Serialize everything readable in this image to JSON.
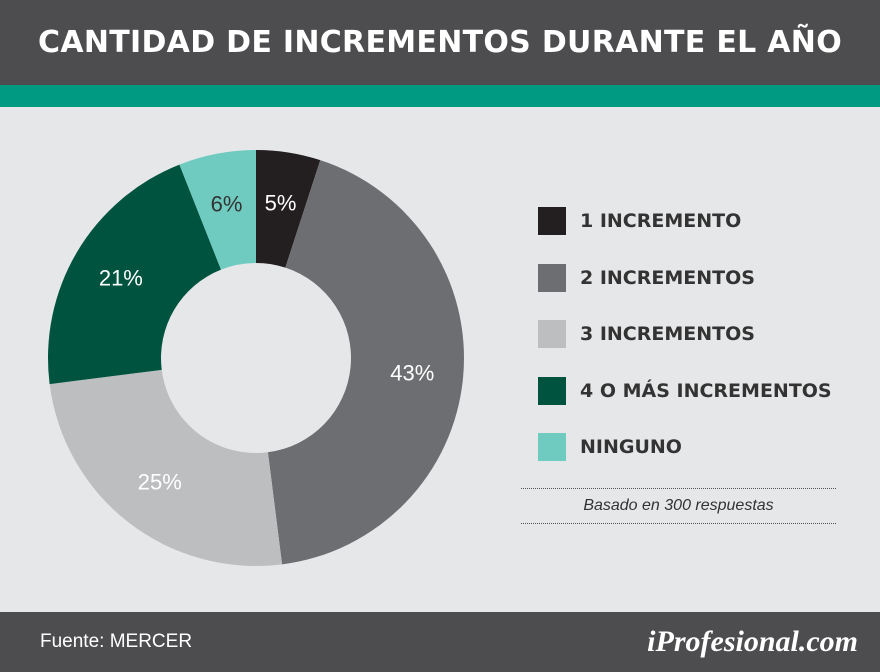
{
  "header": {
    "title": "CANTIDAD DE INCREMENTOS DURANTE EL AÑO"
  },
  "colors": {
    "header_bg": "#4d4d4f",
    "accent_bar": "#009a82",
    "background": "#e6e7e8"
  },
  "chart_data": {
    "type": "pie",
    "style": "donut",
    "title": "CANTIDAD DE INCREMENTOS DURANTE EL AÑO",
    "legend_position": "right",
    "categories": [
      "1 INCREMENTO",
      "2 INCREMENTOS",
      "3 INCREMENTOS",
      "4 O MÁS INCREMENTOS",
      "NINGUNO"
    ],
    "values": [
      5,
      43,
      25,
      21,
      6
    ],
    "labels": [
      "5%",
      "43%",
      "25%",
      "21%",
      "6%"
    ],
    "colors": [
      "#231f20",
      "#6d6e71",
      "#bcbec0",
      "#00533f",
      "#6fcbc0"
    ],
    "label_colors": [
      "#ffffff",
      "#ffffff",
      "#ffffff",
      "#ffffff",
      "#333333"
    ]
  },
  "legend": {
    "items": [
      {
        "label": "1 INCREMENTO",
        "color": "#231f20"
      },
      {
        "label": "2 INCREMENTOS",
        "color": "#6d6e71"
      },
      {
        "label": "3 INCREMENTOS",
        "color": "#bcbec0"
      },
      {
        "label": "4 O MÁS INCREMENTOS",
        "color": "#00533f"
      },
      {
        "label": "NINGUNO",
        "color": "#6fcbc0"
      }
    ]
  },
  "note": "Basado en 300 respuestas",
  "footer": {
    "source": "Fuente: MERCER",
    "brand": "iProfesional.com"
  }
}
